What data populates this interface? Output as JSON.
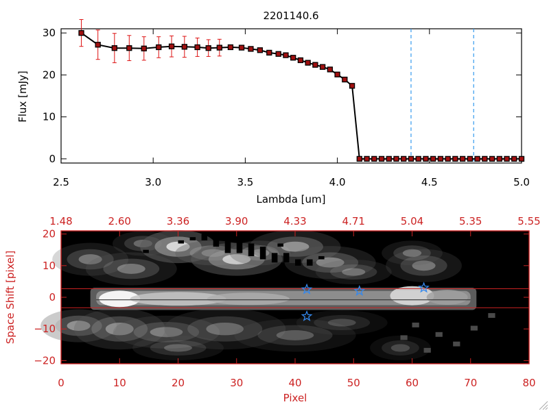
{
  "colors": {
    "axis_black": "#000000",
    "accent_red": "#cc2222",
    "error_bar": "#dd1111",
    "marker_fill": "#a01010",
    "vline_blue": "#3399ee",
    "star_blue": "#3388ee"
  },
  "chart_data": [
    {
      "type": "line",
      "title": "2201140.6",
      "xlabel": "Lambda [um]",
      "ylabel": "Flux [mJy]",
      "xlim": [
        2.5,
        5.0
      ],
      "ylim": [
        -1,
        31
      ],
      "x_ticks": [
        2.5,
        3.0,
        3.5,
        4.0,
        4.5,
        5.0
      ],
      "x_tick_labels": [
        "2.5",
        "3.0",
        "3.5",
        "4.0",
        "4.5",
        "5.0"
      ],
      "y_ticks": [
        0,
        10,
        20,
        30
      ],
      "y_tick_labels": [
        "0",
        "10",
        "20",
        "30"
      ],
      "grid": false,
      "series": [
        {
          "x": [
            2.61,
            2.7,
            2.79,
            2.87,
            2.95,
            3.03,
            3.1,
            3.17,
            3.24,
            3.3,
            3.36,
            3.42,
            3.48,
            3.53,
            3.58,
            3.63,
            3.68,
            3.72,
            3.76,
            3.8,
            3.84,
            3.88,
            3.92,
            3.96,
            4.0,
            4.04,
            4.08,
            4.12,
            4.16,
            4.2,
            4.24,
            4.28,
            4.32,
            4.36,
            4.4,
            4.44,
            4.48,
            4.52,
            4.56,
            4.6,
            4.64,
            4.68,
            4.72,
            4.76,
            4.8,
            4.84,
            4.88,
            4.92,
            4.96,
            5.0
          ],
          "y": [
            30.0,
            27.2,
            26.4,
            26.4,
            26.3,
            26.6,
            26.8,
            26.7,
            26.6,
            26.4,
            26.5,
            26.6,
            26.5,
            26.2,
            25.9,
            25.3,
            25.0,
            24.7,
            24.1,
            23.5,
            22.9,
            22.4,
            21.9,
            21.3,
            20.1,
            18.9,
            17.4,
            0,
            0,
            0,
            0,
            0,
            0,
            0,
            0,
            0,
            0,
            0,
            0,
            0,
            0,
            0,
            0,
            0,
            0,
            0,
            0,
            0,
            0,
            0
          ],
          "yerr": [
            3.2,
            3.5,
            3.5,
            3.0,
            2.8,
            2.5,
            2.5,
            2.5,
            2.2,
            2.0,
            2.0,
            0,
            0,
            0,
            0,
            0,
            0,
            0,
            0,
            0,
            0,
            0,
            0,
            0,
            0,
            0,
            0,
            0,
            0,
            0,
            0,
            0,
            0,
            0,
            0,
            0,
            0,
            0,
            0,
            0,
            0,
            0,
            0,
            0,
            0,
            0,
            0,
            0,
            0,
            0
          ]
        }
      ],
      "vlines": [
        4.4,
        4.74
      ]
    },
    {
      "type": "heatmap",
      "xlabel": "Pixel",
      "ylabel": "Space Shift [pixel]",
      "xlim": [
        0,
        80
      ],
      "ylim": [
        -21,
        21
      ],
      "x_ticks": [
        0,
        10,
        20,
        30,
        40,
        50,
        60,
        70,
        80
      ],
      "x_tick_labels": [
        "0",
        "10",
        "20",
        "30",
        "40",
        "50",
        "60",
        "70",
        "80"
      ],
      "top_axis_tick_labels": [
        "1.48",
        "2.60",
        "3.36",
        "3.90",
        "4.33",
        "4.71",
        "5.04",
        "5.35",
        "5.55"
      ],
      "y_ticks": [
        -20,
        -10,
        0,
        10,
        20
      ],
      "y_tick_labels": [
        "−20",
        "−10",
        "0",
        "10",
        "20"
      ],
      "hlines": [
        2.7,
        -3.3
      ],
      "stars": [
        {
          "x": 42,
          "y": 2.5
        },
        {
          "x": 51,
          "y": 2.0
        },
        {
          "x": 62,
          "y": 3.0
        },
        {
          "x": 42,
          "y": -6.0
        }
      ]
    }
  ]
}
